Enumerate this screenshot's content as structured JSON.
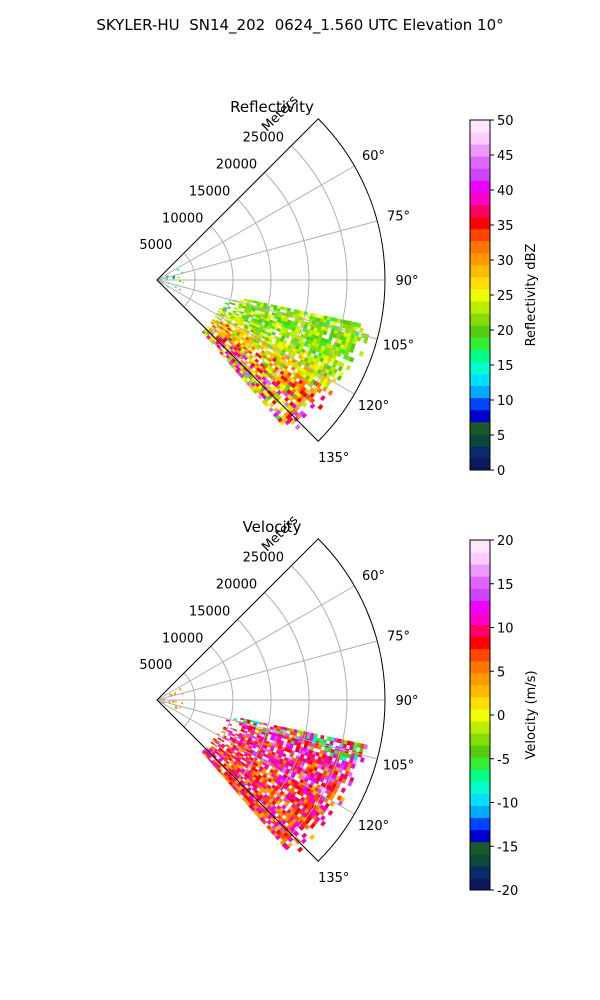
{
  "page_title": "SKYLER-HU  SN14_202  0624_1.560 UTC Elevation 10°",
  "chart_data": [
    {
      "type": "heatmap",
      "title": "Reflectivity",
      "radial_axis_label": "Meters",
      "radial_ticks": [
        5000,
        10000,
        15000,
        20000,
        25000
      ],
      "radial_tick_labels": [
        "5000",
        "10000",
        "15000",
        "20000",
        "25000"
      ],
      "azimuth_ticks": [
        60,
        75,
        90,
        105,
        120,
        135
      ],
      "azimuth_tick_labels": [
        "60°",
        "75°",
        "90°",
        "105°",
        "120°",
        "135°"
      ],
      "azimuth_range": [
        45,
        135
      ],
      "radial_range": [
        0,
        30000
      ],
      "grid": true,
      "colorbar": {
        "label": "Reflectivity dBZ",
        "range": [
          0,
          50
        ],
        "ticks": [
          0,
          5,
          10,
          15,
          20,
          25,
          30,
          35,
          40,
          45,
          50
        ]
      }
    },
    {
      "type": "heatmap",
      "title": "Velocity",
      "radial_axis_label": "Meters",
      "radial_ticks": [
        5000,
        10000,
        15000,
        20000,
        25000
      ],
      "radial_tick_labels": [
        "5000",
        "10000",
        "15000",
        "20000",
        "25000"
      ],
      "azimuth_ticks": [
        60,
        75,
        90,
        105,
        120,
        135
      ],
      "azimuth_tick_labels": [
        "60°",
        "75°",
        "90°",
        "105°",
        "120°",
        "135°"
      ],
      "azimuth_range": [
        45,
        135
      ],
      "radial_range": [
        0,
        30000
      ],
      "grid": true,
      "colorbar": {
        "label": "Velocity (m/s)",
        "range": [
          -20,
          20
        ],
        "ticks": [
          -20,
          -15,
          -10,
          -5,
          0,
          5,
          10,
          15,
          20
        ]
      }
    }
  ],
  "colorscale": [
    "#0a1a5c",
    "#0a2a6a",
    "#0a4a3a",
    "#1a5a2a",
    "#0000cc",
    "#0044ff",
    "#00aaff",
    "#00e0ff",
    "#00ffcc",
    "#00ff88",
    "#33ee33",
    "#55cc11",
    "#88dd00",
    "#bbee00",
    "#eeff00",
    "#ffdd00",
    "#ffbb00",
    "#ff9900",
    "#ff7700",
    "#ff4400",
    "#ff0000",
    "#ff0066",
    "#ff00cc",
    "#ee00ff",
    "#cc44ff",
    "#dd66ff",
    "#ee99ff",
    "#ffccff",
    "#ffe6ff"
  ]
}
